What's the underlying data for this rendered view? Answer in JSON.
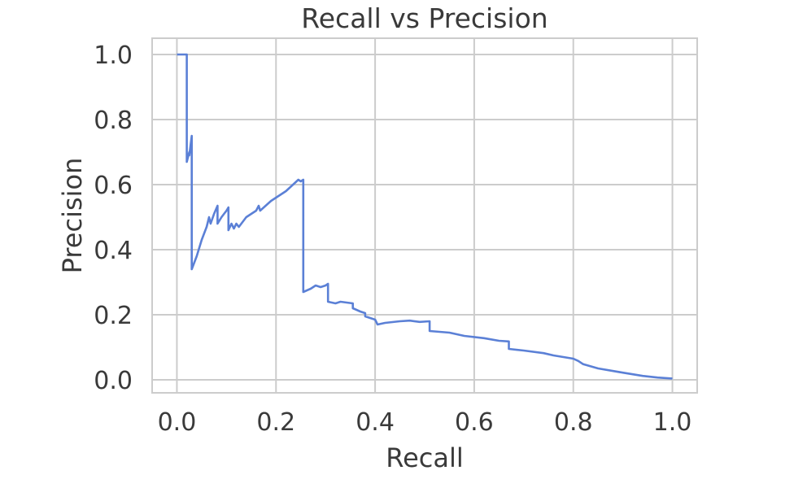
{
  "chart_data": {
    "type": "line",
    "title": "Recall vs Precision",
    "xlabel": "Recall",
    "ylabel": "Precision",
    "xlim": [
      -0.05,
      1.05
    ],
    "ylim": [
      -0.04,
      1.05
    ],
    "grid": true,
    "xticks": [
      0.0,
      0.2,
      0.4,
      0.6,
      0.8,
      1.0
    ],
    "xtick_labels": [
      "0.0",
      "0.2",
      "0.4",
      "0.6",
      "0.8",
      "1.0"
    ],
    "yticks": [
      0.0,
      0.2,
      0.4,
      0.6,
      0.8,
      1.0
    ],
    "ytick_labels": [
      "0.0",
      "0.2",
      "0.4",
      "0.6",
      "0.8",
      "1.0"
    ],
    "series": [
      {
        "color": "#5b80d6",
        "points": [
          [
            0.0,
            1.0
          ],
          [
            0.02,
            1.0
          ],
          [
            0.02,
            0.67
          ],
          [
            0.025,
            0.7
          ],
          [
            0.025,
            0.69
          ],
          [
            0.03,
            0.75
          ],
          [
            0.03,
            0.34
          ],
          [
            0.04,
            0.38
          ],
          [
            0.05,
            0.43
          ],
          [
            0.06,
            0.47
          ],
          [
            0.065,
            0.5
          ],
          [
            0.068,
            0.48
          ],
          [
            0.075,
            0.51
          ],
          [
            0.082,
            0.535
          ],
          [
            0.082,
            0.48
          ],
          [
            0.09,
            0.5
          ],
          [
            0.1,
            0.52
          ],
          [
            0.104,
            0.53
          ],
          [
            0.104,
            0.46
          ],
          [
            0.11,
            0.48
          ],
          [
            0.115,
            0.465
          ],
          [
            0.12,
            0.48
          ],
          [
            0.125,
            0.47
          ],
          [
            0.14,
            0.5
          ],
          [
            0.16,
            0.52
          ],
          [
            0.165,
            0.535
          ],
          [
            0.168,
            0.52
          ],
          [
            0.19,
            0.55
          ],
          [
            0.22,
            0.58
          ],
          [
            0.245,
            0.615
          ],
          [
            0.25,
            0.61
          ],
          [
            0.255,
            0.615
          ],
          [
            0.255,
            0.61
          ],
          [
            0.255,
            0.27
          ],
          [
            0.27,
            0.28
          ],
          [
            0.28,
            0.29
          ],
          [
            0.29,
            0.285
          ],
          [
            0.3,
            0.29
          ],
          [
            0.305,
            0.295
          ],
          [
            0.305,
            0.24
          ],
          [
            0.32,
            0.235
          ],
          [
            0.33,
            0.24
          ],
          [
            0.355,
            0.235
          ],
          [
            0.355,
            0.22
          ],
          [
            0.37,
            0.21
          ],
          [
            0.38,
            0.205
          ],
          [
            0.38,
            0.195
          ],
          [
            0.4,
            0.185
          ],
          [
            0.405,
            0.17
          ],
          [
            0.42,
            0.175
          ],
          [
            0.45,
            0.18
          ],
          [
            0.47,
            0.182
          ],
          [
            0.49,
            0.178
          ],
          [
            0.51,
            0.18
          ],
          [
            0.51,
            0.15
          ],
          [
            0.55,
            0.145
          ],
          [
            0.58,
            0.135
          ],
          [
            0.62,
            0.128
          ],
          [
            0.65,
            0.12
          ],
          [
            0.67,
            0.118
          ],
          [
            0.67,
            0.095
          ],
          [
            0.7,
            0.09
          ],
          [
            0.74,
            0.082
          ],
          [
            0.76,
            0.075
          ],
          [
            0.8,
            0.065
          ],
          [
            0.81,
            0.058
          ],
          [
            0.82,
            0.048
          ],
          [
            0.85,
            0.035
          ],
          [
            0.9,
            0.022
          ],
          [
            0.94,
            0.012
          ],
          [
            0.97,
            0.007
          ],
          [
            1.0,
            0.004
          ]
        ]
      }
    ]
  }
}
